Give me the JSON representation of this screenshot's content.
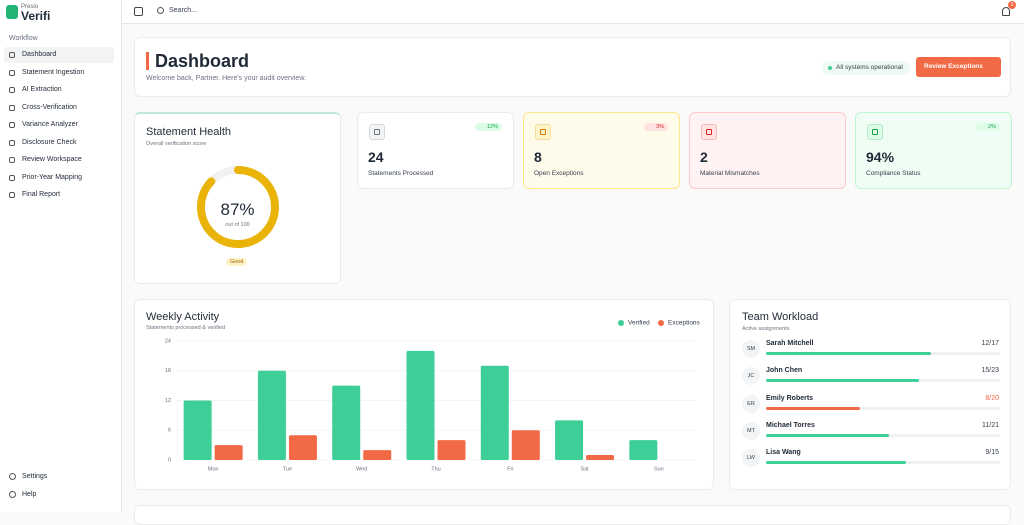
{
  "brand": {
    "small": "Presio",
    "name": "Verifi"
  },
  "sidebar": {
    "section": "Workflow",
    "items": [
      "Dashboard",
      "Statement Ingestion",
      "AI Extraction",
      "Cross-Verification",
      "Variance Analyzer",
      "Disclosure Check",
      "Review Workspace",
      "Prior-Year Mapping",
      "Final Report"
    ],
    "footer": [
      "Settings",
      "Help"
    ]
  },
  "topbar": {
    "search": "Search...",
    "notifications": "3"
  },
  "header": {
    "title": "Dashboard",
    "subtitle": "Welcome back, Partner. Here's your audit overview.",
    "status": "All systems operational",
    "button": "Review Exceptions"
  },
  "health": {
    "title": "Statement Health",
    "subtitle": "Overall verification score",
    "value": 87,
    "value_label": "87%",
    "max": 100,
    "caption": "out of 100",
    "badge": "Good",
    "color": "#eab308"
  },
  "stats": [
    {
      "value": "24",
      "label": "Statements Processed",
      "trend": "12%"
    },
    {
      "value": "8",
      "label": "Open Exceptions",
      "trend": "3%"
    },
    {
      "value": "2",
      "label": "Material Mismatches"
    },
    {
      "value": "94%",
      "label": "Compliance Status",
      "trend": "2%"
    }
  ],
  "chart_data": {
    "type": "bar",
    "title": "Weekly Activity",
    "subtitle": "Statements processed & verified",
    "categories": [
      "Mon",
      "Tue",
      "Wed",
      "Thu",
      "Fri",
      "Sat",
      "Sun"
    ],
    "series": [
      {
        "name": "Verified",
        "color": "#3ecf98",
        "values": [
          12,
          18,
          15,
          22,
          19,
          8,
          4
        ]
      },
      {
        "name": "Exceptions",
        "color": "#f26a45",
        "values": [
          3,
          5,
          2,
          4,
          6,
          1,
          0
        ]
      }
    ],
    "ylim": [
      0,
      24
    ],
    "yticks": [
      0,
      6,
      12,
      18,
      24
    ],
    "grid": true,
    "legend": "top-right"
  },
  "team": {
    "title": "Team Workload",
    "subtitle": "Active assignments",
    "members": [
      {
        "initials": "SM",
        "name": "Sarah Mitchell",
        "done": 12,
        "total": 17,
        "label": "12/17"
      },
      {
        "initials": "JC",
        "name": "John Chen",
        "done": 15,
        "total": 23,
        "label": "15/23"
      },
      {
        "initials": "ER",
        "name": "Emily Roberts",
        "done": 8,
        "total": 20,
        "label": "8/20",
        "alert": true
      },
      {
        "initials": "MT",
        "name": "Michael Torres",
        "done": 11,
        "total": 21,
        "label": "11/21"
      },
      {
        "initials": "LW",
        "name": "Lisa Wang",
        "done": 9,
        "total": 15,
        "label": "9/15"
      }
    ]
  }
}
